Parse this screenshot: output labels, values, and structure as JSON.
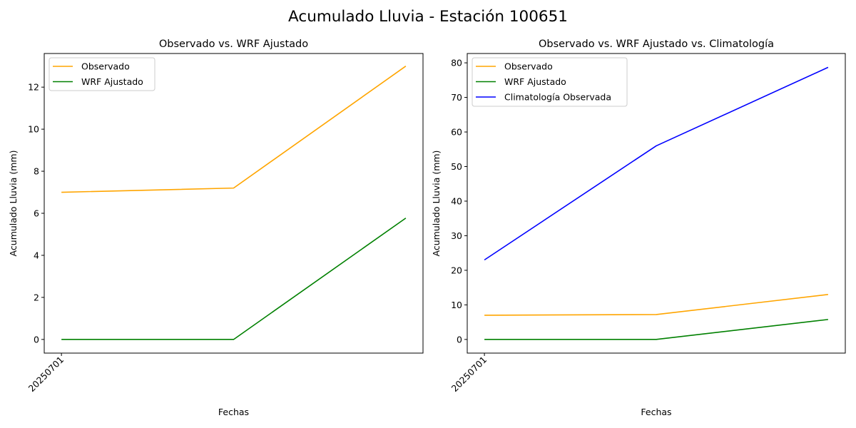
{
  "figure": {
    "suptitle": "Acumulado Lluvia - Estación 100651"
  },
  "chart_data": [
    {
      "type": "line",
      "title": "Observado vs. WRF Ajustado",
      "xlabel": "Fechas",
      "ylabel": "Acumulado Lluvia (mm)",
      "x": [
        0,
        1,
        2
      ],
      "xtick_labels": [
        {
          "x": 0,
          "label": "20250701"
        }
      ],
      "ylim": [
        -0.65,
        13.6
      ],
      "yticks": [
        0,
        2,
        4,
        6,
        8,
        10,
        12
      ],
      "grid": false,
      "legend": "top-left",
      "series": [
        {
          "name": "Observado",
          "color": "#FFA500",
          "values": [
            7.0,
            7.2,
            13.0
          ]
        },
        {
          "name": "WRF Ajustado",
          "color": "#008000",
          "values": [
            0.0,
            0.0,
            5.77
          ]
        }
      ]
    },
    {
      "type": "line",
      "title": "Observado vs. WRF Ajustado vs. Climatología",
      "xlabel": "Fechas",
      "ylabel": "Acumulado Lluvia (mm)",
      "x": [
        0,
        1,
        2
      ],
      "xtick_labels": [
        {
          "x": 0,
          "label": "20250701"
        }
      ],
      "ylim": [
        -3.95,
        82.7
      ],
      "yticks": [
        0,
        10,
        20,
        30,
        40,
        50,
        60,
        70,
        80
      ],
      "grid": false,
      "legend": "top-left",
      "series": [
        {
          "name": "Observado",
          "color": "#FFA500",
          "values": [
            7.0,
            7.2,
            13.0
          ]
        },
        {
          "name": "WRF Ajustado",
          "color": "#008000",
          "values": [
            0.0,
            0.0,
            5.77
          ]
        },
        {
          "name": "Climatología Observada",
          "color": "#0000FF",
          "values": [
            23.0,
            56.0,
            78.7
          ]
        }
      ]
    }
  ]
}
